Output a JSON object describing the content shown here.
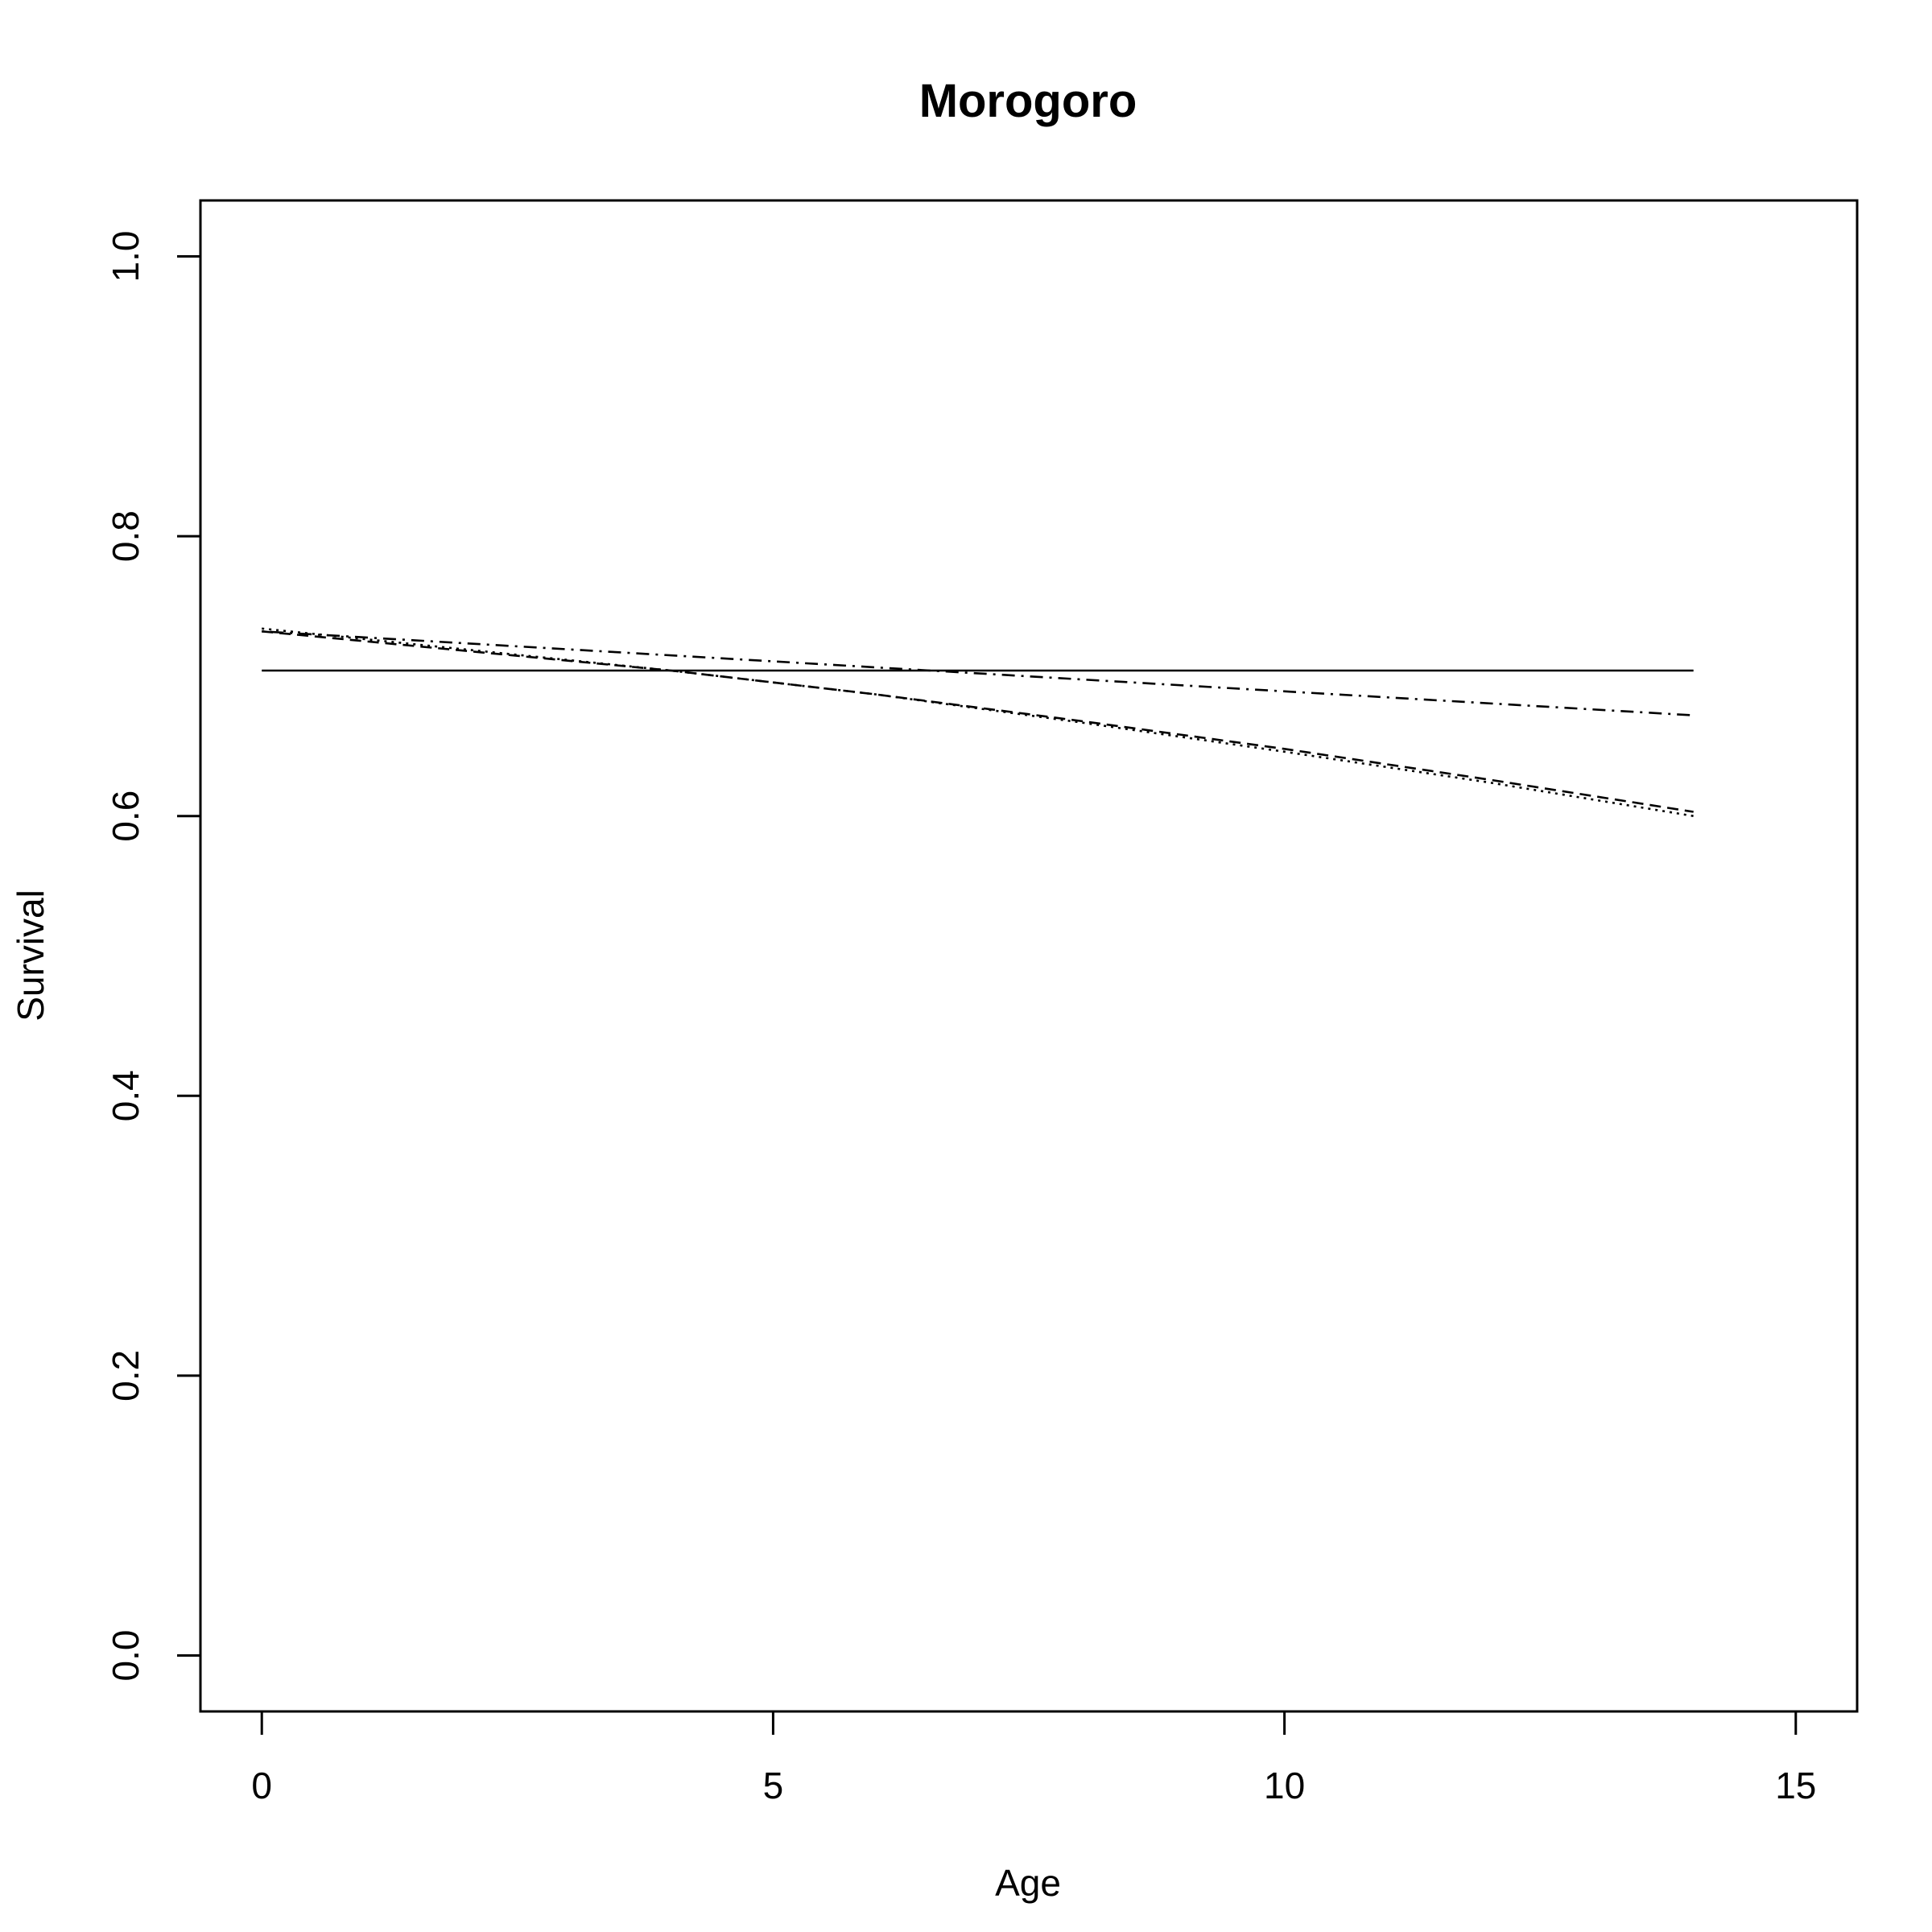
{
  "chart_data": {
    "type": "line",
    "title": "Morogoro",
    "xlabel": "Age",
    "ylabel": "Survival",
    "xlim": [
      -0.6,
      15.6
    ],
    "ylim": [
      -0.04,
      1.04
    ],
    "x_ticks": [
      0,
      5,
      10,
      15
    ],
    "y_ticks": [
      0.0,
      0.2,
      0.4,
      0.6,
      0.8,
      1.0
    ],
    "x_tick_labels": [
      "0",
      "5",
      "10",
      "15"
    ],
    "y_tick_labels": [
      "0.0",
      "0.2",
      "0.4",
      "0.6",
      "0.8",
      "1.0"
    ],
    "grid": false,
    "legend": "none",
    "series": [
      {
        "line_style": "solid",
        "color": "#000000",
        "x": [
          0,
          14
        ],
        "y": [
          0.704,
          0.704
        ]
      },
      {
        "line_style": "dashed",
        "color": "#000000",
        "x": [
          0,
          2,
          4,
          6,
          8,
          10,
          12,
          14
        ],
        "y": [
          0.732,
          0.718,
          0.704,
          0.687,
          0.668,
          0.648,
          0.626,
          0.603
        ]
      },
      {
        "line_style": "dotted",
        "color": "#000000",
        "x": [
          0,
          2,
          4,
          6,
          8,
          10,
          12,
          14
        ],
        "y": [
          0.734,
          0.719,
          0.704,
          0.687,
          0.667,
          0.646,
          0.624,
          0.6
        ]
      },
      {
        "line_style": "dot-dash",
        "color": "#000000",
        "x": [
          0,
          14
        ],
        "y": [
          0.732,
          0.672
        ]
      }
    ]
  }
}
